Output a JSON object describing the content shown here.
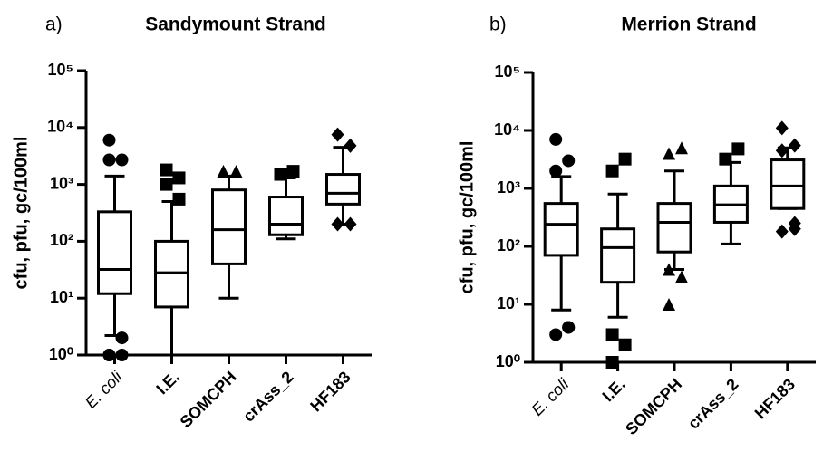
{
  "chart_data": [
    {
      "type": "box",
      "panel": "a)",
      "title": "Sandymount Strand",
      "ylabel": "cfu, pfu, gc/100ml",
      "categories": [
        "E. coli",
        "I.E.",
        "SOMCPH",
        "crAss_2",
        "HF183"
      ],
      "category_styles": [
        "italic",
        "bold",
        "bold",
        "bold",
        "bold"
      ],
      "markers": [
        "circle",
        "square",
        "triangle",
        "square",
        "diamond"
      ],
      "boxes": [
        {
          "low": 2.2,
          "q1": 12,
          "median": 32,
          "q3": 330,
          "high": 1400,
          "outliers": [
            6000,
            2700,
            2700,
            2,
            1,
            1,
            1
          ]
        },
        {
          "low": 1,
          "q1": 7,
          "median": 28,
          "q3": 100,
          "high": 500,
          "outliers": [
            1800,
            1300,
            1000,
            550
          ]
        },
        {
          "low": 10,
          "q1": 40,
          "median": 160,
          "q3": 800,
          "high": 1400,
          "outliers": [
            1700,
            1700,
            1700
          ]
        },
        {
          "low": 110,
          "q1": 130,
          "median": 200,
          "q3": 600,
          "high": 1300,
          "outliers": [
            1500,
            1700
          ]
        },
        {
          "low": 200,
          "q1": 450,
          "median": 700,
          "q3": 1500,
          "high": 4500,
          "outliers": [
            7500,
            4800,
            200,
            200
          ]
        }
      ],
      "ylim": [
        1,
        100000
      ],
      "log_scale": true,
      "color": "#000000",
      "yticks": [
        {
          "value": 1,
          "label": "10⁰"
        },
        {
          "value": 10,
          "label": "10¹"
        },
        {
          "value": 100,
          "label": "10²"
        },
        {
          "value": 1000,
          "label": "10³"
        },
        {
          "value": 10000,
          "label": "10⁴"
        },
        {
          "value": 100000,
          "label": "10⁵"
        }
      ]
    },
    {
      "type": "box",
      "panel": "b)",
      "title": "Merrion Strand",
      "ylabel": "cfu, pfu, gc/100ml",
      "categories": [
        "E. coli",
        "I.E.",
        "SOMCPH",
        "crAss_2",
        "HF183"
      ],
      "category_styles": [
        "italic",
        "bold",
        "bold",
        "bold",
        "bold"
      ],
      "markers": [
        "circle",
        "square",
        "triangle",
        "square",
        "diamond"
      ],
      "boxes": [
        {
          "low": 8,
          "q1": 70,
          "median": 240,
          "q3": 550,
          "high": 1600,
          "outliers": [
            7000,
            3000,
            2000,
            4,
            3,
            4
          ]
        },
        {
          "low": 6,
          "q1": 24,
          "median": 95,
          "q3": 200,
          "high": 800,
          "outliers": [
            2000,
            3200,
            3,
            2,
            1
          ]
        },
        {
          "low": 40,
          "q1": 80,
          "median": 260,
          "q3": 550,
          "high": 2000,
          "outliers": [
            4000,
            5000,
            40,
            30,
            10
          ]
        },
        {
          "low": 110,
          "q1": 260,
          "median": 520,
          "q3": 1100,
          "high": 2800,
          "outliers": [
            3200,
            4800
          ]
        },
        {
          "low": 450,
          "q1": 450,
          "median": 1100,
          "q3": 3100,
          "high": 5000,
          "outliers": [
            11000,
            5500,
            4500,
            250,
            180,
            200
          ]
        }
      ],
      "ylim": [
        1,
        100000
      ],
      "log_scale": true,
      "color": "#000000",
      "yticks": [
        {
          "value": 1,
          "label": "10⁰"
        },
        {
          "value": 10,
          "label": "10¹"
        },
        {
          "value": 100,
          "label": "10²"
        },
        {
          "value": 1000,
          "label": "10³"
        },
        {
          "value": 10000,
          "label": "10⁴"
        },
        {
          "value": 100000,
          "label": "10⁵"
        }
      ]
    }
  ]
}
